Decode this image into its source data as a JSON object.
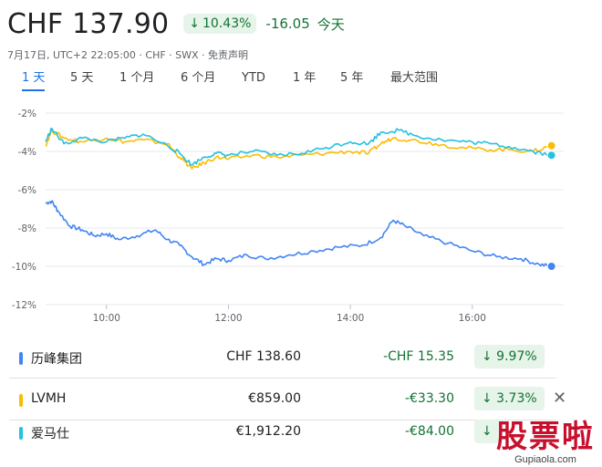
{
  "header": {
    "price": "CHF 137.90",
    "change_arrow": "↓",
    "change_pct": "10.43%",
    "change_abs": "-16.05",
    "change_period": "今天"
  },
  "meta": {
    "text": "7月17日, UTC+2 22:05:00 · CHF · SWX · 免责声明"
  },
  "tabs": [
    {
      "label": "1 天",
      "active": true
    },
    {
      "label": "5 天",
      "active": false
    },
    {
      "label": "1 个月",
      "active": false
    },
    {
      "label": "6 个月",
      "active": false
    },
    {
      "label": "YTD",
      "active": false
    },
    {
      "label": "1 年",
      "active": false
    },
    {
      "label": "5 年",
      "active": false
    },
    {
      "label": "最大范围",
      "active": false
    }
  ],
  "chart_data": {
    "type": "line",
    "x_ticks": [
      "10:00",
      "12:00",
      "14:00",
      "16:00"
    ],
    "y_ticks": [
      "-2%",
      "-4%",
      "-6%",
      "-8%",
      "-10%",
      "-12%"
    ],
    "ylim": [
      -12,
      -2
    ],
    "xlim": [
      9.0,
      17.5
    ],
    "grid": true,
    "series": [
      {
        "color": "#4285f4",
        "points": [
          [
            9.0,
            -6.7
          ],
          [
            9.1,
            -6.6
          ],
          [
            9.2,
            -7.1
          ],
          [
            9.4,
            -7.9
          ],
          [
            9.6,
            -8.1
          ],
          [
            9.8,
            -8.4
          ],
          [
            10.0,
            -8.3
          ],
          [
            10.2,
            -8.6
          ],
          [
            10.5,
            -8.4
          ],
          [
            10.8,
            -8.1
          ],
          [
            11.0,
            -8.6
          ],
          [
            11.2,
            -8.9
          ],
          [
            11.4,
            -9.5
          ],
          [
            11.6,
            -9.9
          ],
          [
            11.8,
            -9.6
          ],
          [
            12.0,
            -9.7
          ],
          [
            12.3,
            -9.4
          ],
          [
            12.6,
            -9.6
          ],
          [
            13.0,
            -9.4
          ],
          [
            13.4,
            -9.2
          ],
          [
            13.8,
            -9.0
          ],
          [
            14.2,
            -8.9
          ],
          [
            14.5,
            -8.5
          ],
          [
            14.7,
            -7.6
          ],
          [
            14.9,
            -7.9
          ],
          [
            15.2,
            -8.4
          ],
          [
            15.6,
            -8.8
          ],
          [
            16.0,
            -9.2
          ],
          [
            16.4,
            -9.5
          ],
          [
            16.8,
            -9.6
          ],
          [
            17.1,
            -9.9
          ],
          [
            17.3,
            -10.0
          ]
        ]
      },
      {
        "color": "#fbbc04",
        "points": [
          [
            9.0,
            -3.7
          ],
          [
            9.1,
            -2.9
          ],
          [
            9.3,
            -3.3
          ],
          [
            9.6,
            -3.5
          ],
          [
            10.0,
            -3.3
          ],
          [
            10.3,
            -3.5
          ],
          [
            10.6,
            -3.4
          ],
          [
            11.0,
            -3.6
          ],
          [
            11.2,
            -4.3
          ],
          [
            11.4,
            -4.9
          ],
          [
            11.6,
            -4.6
          ],
          [
            11.8,
            -4.3
          ],
          [
            12.0,
            -4.4
          ],
          [
            12.4,
            -4.2
          ],
          [
            12.8,
            -4.3
          ],
          [
            13.2,
            -4.2
          ],
          [
            13.6,
            -4.1
          ],
          [
            14.0,
            -4.0
          ],
          [
            14.3,
            -4.1
          ],
          [
            14.5,
            -3.6
          ],
          [
            14.7,
            -3.3
          ],
          [
            15.0,
            -3.4
          ],
          [
            15.4,
            -3.6
          ],
          [
            15.8,
            -3.8
          ],
          [
            16.2,
            -3.9
          ],
          [
            16.6,
            -3.9
          ],
          [
            17.0,
            -4.0
          ],
          [
            17.3,
            -3.7
          ]
        ]
      },
      {
        "color": "#24c1e0",
        "points": [
          [
            9.0,
            -3.5
          ],
          [
            9.1,
            -2.8
          ],
          [
            9.3,
            -3.6
          ],
          [
            9.6,
            -3.3
          ],
          [
            10.0,
            -3.5
          ],
          [
            10.3,
            -3.3
          ],
          [
            10.6,
            -3.1
          ],
          [
            11.0,
            -3.7
          ],
          [
            11.2,
            -4.1
          ],
          [
            11.4,
            -4.7
          ],
          [
            11.6,
            -4.3
          ],
          [
            11.8,
            -4.1
          ],
          [
            12.0,
            -4.2
          ],
          [
            12.4,
            -4.0
          ],
          [
            12.8,
            -4.2
          ],
          [
            13.2,
            -4.1
          ],
          [
            13.6,
            -3.8
          ],
          [
            14.0,
            -3.5
          ],
          [
            14.3,
            -3.6
          ],
          [
            14.5,
            -3.0
          ],
          [
            14.8,
            -2.9
          ],
          [
            15.1,
            -3.2
          ],
          [
            15.5,
            -3.4
          ],
          [
            15.9,
            -3.5
          ],
          [
            16.3,
            -3.6
          ],
          [
            16.7,
            -3.8
          ],
          [
            17.0,
            -4.0
          ],
          [
            17.3,
            -4.2
          ]
        ]
      }
    ]
  },
  "rows": [
    {
      "name": "历峰集团",
      "color": "#4285f4",
      "price": "CHF 138.60",
      "change": "-CHF 15.35",
      "pct": "↓ 9.97%",
      "closable": false
    },
    {
      "name": "LVMH",
      "color": "#fbbc04",
      "price": "€859.00",
      "change": "-€33.30",
      "pct": "↓ 3.73%",
      "closable": true
    },
    {
      "name": "爱马仕",
      "color": "#24c1e0",
      "price": "€1,912.20",
      "change": "-€84.00",
      "pct": "↓",
      "closable": false
    }
  ],
  "watermark": {
    "cn": "股票啦",
    "url": "Gupiaola.com"
  },
  "close_glyph": "✕"
}
